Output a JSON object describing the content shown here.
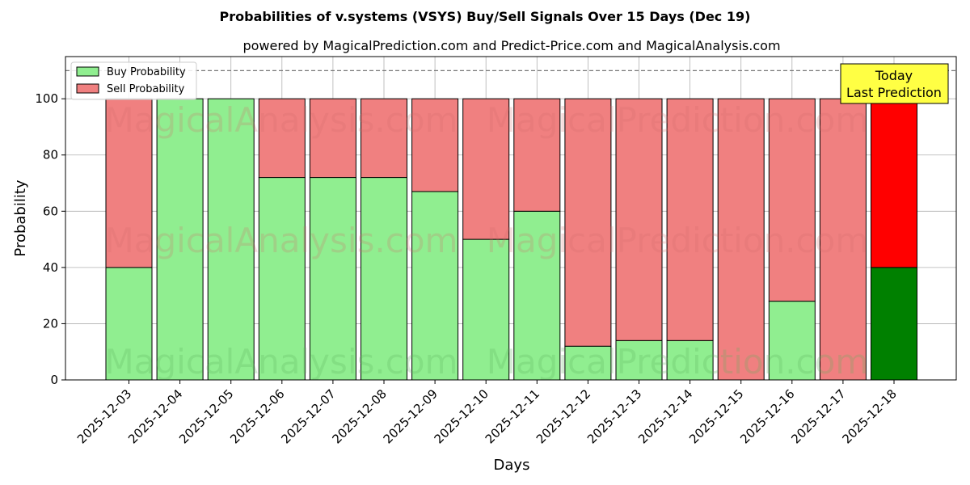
{
  "chart_data": {
    "type": "bar",
    "stacked": true,
    "title": "Probabilities of v.systems (VSYS) Buy/Sell Signals Over 15 Days (Dec 19)",
    "subtitle": "powered by MagicalPrediction.com and Predict-Price.com and MagicalAnalysis.com",
    "xlabel": "Days",
    "ylabel": "Probability",
    "ylim": [
      0,
      115
    ],
    "yticks": [
      0,
      20,
      40,
      60,
      80,
      100
    ],
    "reference_line": 110,
    "grid": true,
    "legend_position": "top-left",
    "categories": [
      "2025-12-03",
      "2025-12-04",
      "2025-12-05",
      "2025-12-06",
      "2025-12-07",
      "2025-12-08",
      "2025-12-09",
      "2025-12-10",
      "2025-12-11",
      "2025-12-12",
      "2025-12-13",
      "2025-12-14",
      "2025-12-15",
      "2025-12-16",
      "2025-12-17",
      "2025-12-18"
    ],
    "series": [
      {
        "name": "Buy Probability",
        "color": "#90ee90",
        "highlight_color": "#008000",
        "values": [
          40,
          100,
          100,
          72,
          72,
          72,
          67,
          50,
          60,
          12,
          14,
          14,
          0,
          28,
          0,
          40
        ]
      },
      {
        "name": "Sell Probability",
        "color": "#f08080",
        "highlight_color": "#ff0000",
        "values": [
          60,
          0,
          0,
          28,
          28,
          28,
          33,
          50,
          40,
          88,
          86,
          86,
          100,
          72,
          100,
          60
        ]
      }
    ],
    "highlight_index": 15,
    "annotation": {
      "line1": "Today",
      "line2": "Last Prediction",
      "bg_color": "#ffff44"
    },
    "watermarks": [
      "MagicalAnalysis.com",
      "MagicalPrediction.com"
    ]
  }
}
